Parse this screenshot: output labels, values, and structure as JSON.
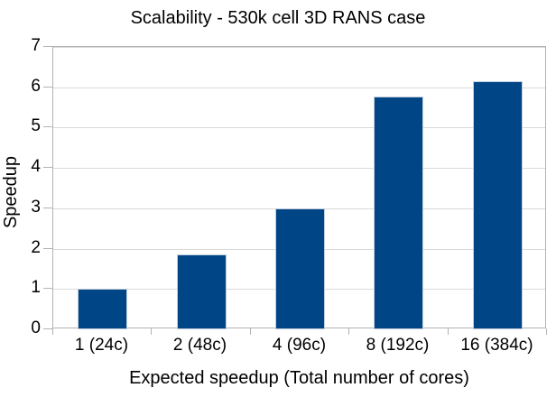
{
  "chart_data": {
    "type": "bar",
    "title": "Scalability - 530k cell 3D RANS case",
    "xlabel": "Expected speedup (Total number of cores)",
    "ylabel": "Speedup",
    "categories": [
      "1 (24c)",
      "2 (48c)",
      "4 (96c)",
      "8 (192c)",
      "16 (384c)"
    ],
    "values": [
      1.0,
      1.85,
      3.0,
      5.78,
      6.16
    ],
    "ylim": [
      0,
      7
    ],
    "yticks": [
      0,
      1,
      2,
      3,
      4,
      5,
      6,
      7
    ],
    "grid": "horizontal",
    "legend": "none",
    "colors": {
      "bar": "#004586",
      "gridline": "#d9d9d9",
      "axis": "#b3b3b3",
      "text": "#000000",
      "background": "#ffffff"
    }
  }
}
